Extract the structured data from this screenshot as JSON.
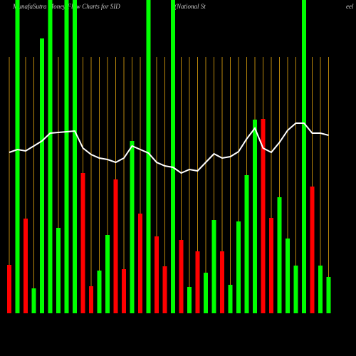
{
  "chart_data": {
    "type": "bar",
    "title": [
      "MunafaSutra Money Flow Charts for SID",
      "(National St",
      "eel"
    ],
    "ylim": [
      0,
      440
    ],
    "values": [
      68,
      440,
      133,
      35,
      386,
      440,
      120,
      440,
      440,
      197,
      38,
      60,
      110,
      188,
      62,
      242,
      140,
      440,
      108,
      66,
      440,
      103,
      37,
      87,
      57,
      131,
      87,
      40,
      129,
      194,
      272,
      273,
      134,
      163,
      105,
      67,
      440,
      178,
      67,
      51
    ],
    "bar_colors": [
      "#ff0000",
      "#00ff00",
      "#ff0000",
      "#00ff00",
      "#00ff00",
      "#00ff00",
      "#00ff00",
      "#00ff00",
      "#00ff00",
      "#ff0000",
      "#ff0000",
      "#00ff00",
      "#00ff00",
      "#ff0000",
      "#ff0000",
      "#00ff00",
      "#ff0000",
      "#00ff00",
      "#ff0000",
      "#ff0000",
      "#00ff00",
      "#ff0000",
      "#00ff00",
      "#ff0000",
      "#00ff00",
      "#00ff00",
      "#ff0000",
      "#00ff00",
      "#00ff00",
      "#00ff00",
      "#00ff00",
      "#ff0000",
      "#ff0000",
      "#00ff00",
      "#00ff00",
      "#00ff00",
      "#00ff00",
      "#ff0000",
      "#00ff00",
      "#00ff00"
    ],
    "line_values": [
      226,
      230,
      228,
      235,
      242,
      253,
      254,
      255,
      256,
      232,
      223,
      218,
      216,
      212,
      218,
      235,
      230,
      225,
      212,
      207,
      205,
      197,
      202,
      200,
      212,
      224,
      218,
      220,
      227,
      245,
      260,
      232,
      226,
      240,
      257,
      267,
      267,
      253,
      253,
      250
    ],
    "line_color": "#ffffff",
    "guide_color": "#b8860b"
  }
}
